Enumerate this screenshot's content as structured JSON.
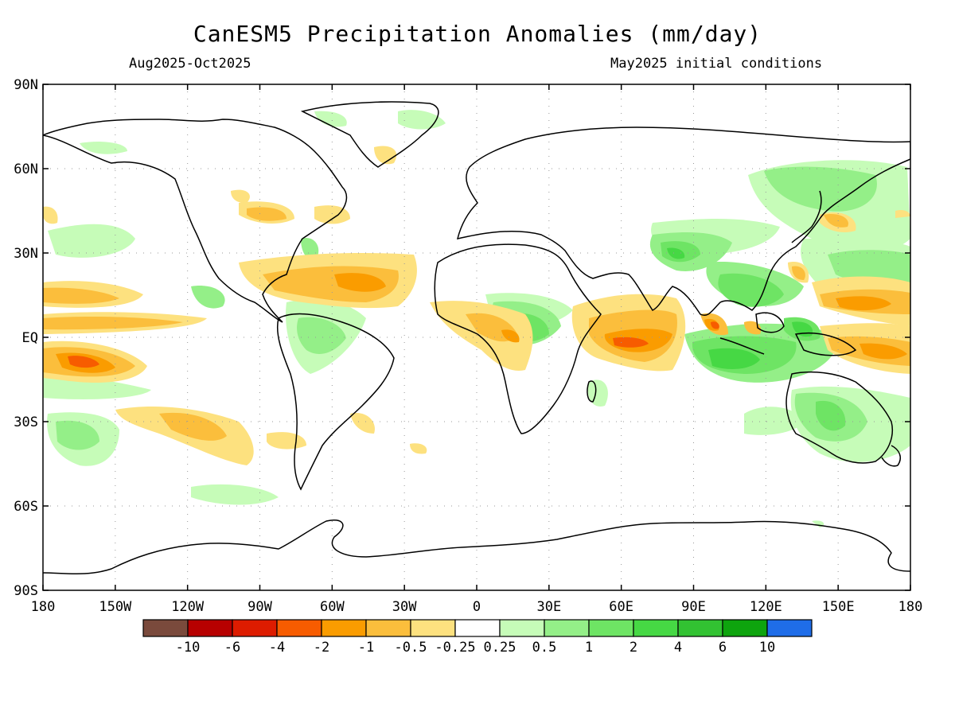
{
  "title": "CanESM5 Precipitation Anomalies (mm/day)",
  "subtitle_left": "Aug2025-Oct2025",
  "subtitle_right": "May2025 initial conditions",
  "lat_ticks": [
    "90N",
    "60N",
    "30N",
    "EQ",
    "30S",
    "60S",
    "90S"
  ],
  "lon_ticks": [
    "180",
    "150W",
    "120W",
    "90W",
    "60W",
    "30W",
    "0",
    "30E",
    "60E",
    "90E",
    "120E",
    "150E",
    "180"
  ],
  "colorbar": {
    "colors": [
      "#7a4a3c",
      "#b70000",
      "#dd1c00",
      "#f75c00",
      "#fa9c00",
      "#fbbe3c",
      "#fde17f",
      "#ffffff",
      "#c6fcb8",
      "#94ef88",
      "#6ee464",
      "#46d844",
      "#32c232",
      "#0ea40e",
      "#1f6de8"
    ],
    "labels": [
      "-10",
      "-6",
      "-4",
      "-2",
      "-1",
      "-0.5",
      "-0.25",
      "0.25",
      "0.5",
      "1",
      "2",
      "4",
      "6",
      "10"
    ]
  }
}
